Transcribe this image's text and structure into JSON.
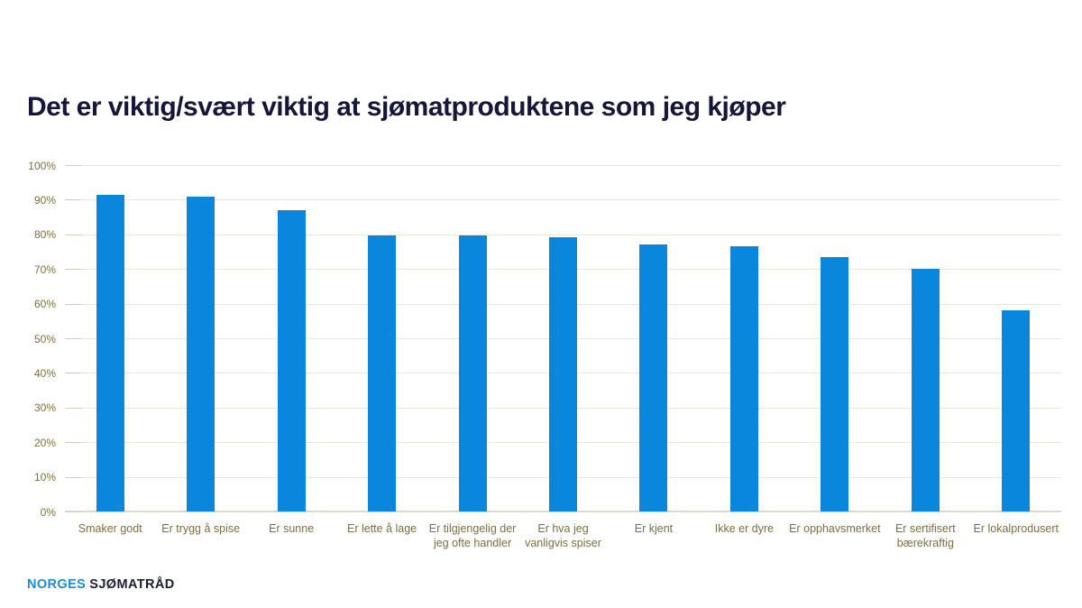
{
  "title": "Det er viktig/svært viktig at sjømatproduktene som jeg kjøper",
  "logo": {
    "part1": "NORGES",
    "part2": "SJØMATRÅD"
  },
  "colors": {
    "bar": "#0a86dd",
    "axis_label": "#7d7038",
    "gridline": "#e9e6db",
    "title": "#15163a",
    "logo_blue": "#1b8cd6",
    "logo_dark": "#1b1c33"
  },
  "chart_data": {
    "type": "bar",
    "title": "Det er viktig/svært viktig at sjømatproduktene som jeg kjøper",
    "categories": [
      "Smaker godt",
      "Er trygg å spise",
      "Er sunne",
      "Er lette å lage",
      "Er tilgjengelig der\njeg ofte handler",
      "Er hva jeg\nvanligvis spiser",
      "Er kjent",
      "Ikke er dyre",
      "Er opphavsmerket",
      "Er sertifisert\nbærekraftig",
      "Er lokalprodusert"
    ],
    "values": [
      91.3,
      90.8,
      87.1,
      79.6,
      79.8,
      79.2,
      77.0,
      76.6,
      73.5,
      70.0,
      58.0
    ],
    "xlabel": "",
    "ylabel": "",
    "ylim": [
      0,
      100
    ],
    "ytick_step": 10,
    "ytick_labels": [
      "0%",
      "10%",
      "20%",
      "30%",
      "40%",
      "50%",
      "60%",
      "70%",
      "80%",
      "90%",
      "100%"
    ],
    "grid": true,
    "legend": false,
    "bar_color": "#0a86dd"
  }
}
